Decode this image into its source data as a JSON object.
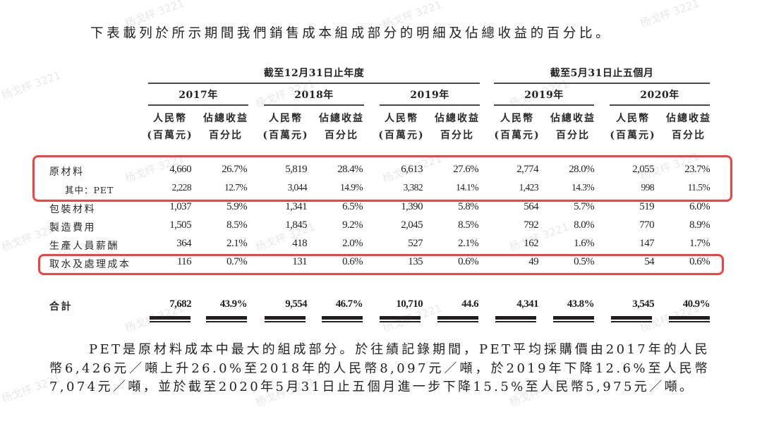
{
  "intro_text": "下表載列於所示期間我們銷售成本組成部分的明細及佔總收益的百分比。",
  "table": {
    "group_headers": [
      {
        "label": "截至12月31日止年度"
      },
      {
        "label": "截至5月31日止五個月"
      }
    ],
    "periods": [
      "2017年",
      "2018年",
      "2019年",
      "2019年",
      "2020年"
    ],
    "column_headers": {
      "amount_line1": "人民幣",
      "amount_line2": "(百萬元)",
      "pct_line1": "佔總收益",
      "pct_line2": "百分比"
    },
    "rows": [
      {
        "label": "原材料",
        "values": [
          "4,660",
          "26.7%",
          "5,819",
          "28.4%",
          "6,613",
          "27.6%",
          "2,774",
          "28.0%",
          "2,055",
          "23.7%"
        ],
        "highlighted": true
      },
      {
        "label": "其中：PET",
        "values": [
          "2,228",
          "12.7%",
          "3,044",
          "14.9%",
          "3,382",
          "14.1%",
          "1,423",
          "14.3%",
          "998",
          "11.5%"
        ],
        "highlighted": true,
        "indent": true
      },
      {
        "label": "包裝材料",
        "values": [
          "1,037",
          "5.9%",
          "1,341",
          "6.5%",
          "1,390",
          "5.8%",
          "564",
          "5.7%",
          "519",
          "6.0%"
        ]
      },
      {
        "label": "製造費用",
        "values": [
          "1,505",
          "8.5%",
          "1,845",
          "9.2%",
          "2,045",
          "8.5%",
          "792",
          "8.0%",
          "770",
          "8.9%"
        ]
      },
      {
        "label": "生產人員薪酬",
        "values": [
          "364",
          "2.1%",
          "418",
          "2.0%",
          "527",
          "2.1%",
          "162",
          "1.6%",
          "147",
          "1.7%"
        ]
      },
      {
        "label": "取水及處理成本",
        "values": [
          "116",
          "0.7%",
          "131",
          "0.6%",
          "135",
          "0.6%",
          "49",
          "0.5%",
          "54",
          "0.6%"
        ],
        "highlighted": true
      }
    ],
    "total": {
      "label": "合計",
      "values": [
        "7,682",
        "43.9%",
        "9,554",
        "46.7%",
        "10,710",
        "44.6",
        "4,341",
        "43.8%",
        "3,545",
        "40.9%"
      ]
    }
  },
  "paragraph": "PET是原材料成本中最大的組成部分。於往績記錄期間，PET平均採購價由2017年的人民幣6,426元／噸上升26.0%至2018年的人民幣8,097元／噸，於2019年下降12.6%至人民幣7,074元／噸，並於截至2020年5月31日止五個月進一步下降15.5%至人民幣5,975元／噸。",
  "watermark": "杨戈枰 3221",
  "colors": {
    "highlight_box": "#ef4444",
    "text": "#231f20"
  }
}
